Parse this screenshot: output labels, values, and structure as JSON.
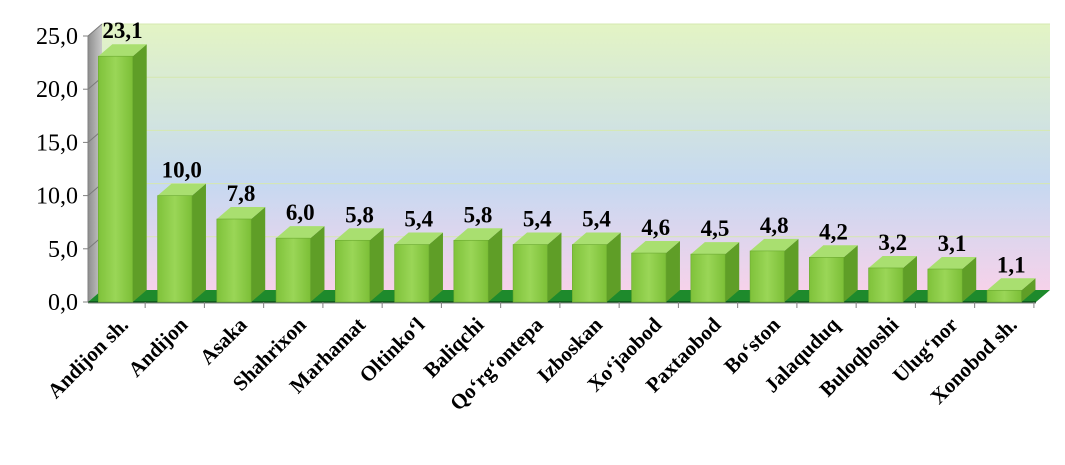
{
  "chart_data": {
    "type": "bar",
    "categories": [
      "Andijon sh.",
      "Andijon",
      "Asaka",
      "Shahrixon",
      "Marhamat",
      "Oltinko‘l",
      "Baliqchi",
      "Qo‘rg‘ontepa",
      "Izboskan",
      "Xo‘jaobod",
      "Paxtaobod",
      "Bo‘ston",
      "Jalaquduq",
      "Buloqboshi",
      "Ulug‘nor",
      "Xonobod sh."
    ],
    "values": [
      23.1,
      10.0,
      7.8,
      6.0,
      5.8,
      5.4,
      5.8,
      5.4,
      5.4,
      4.6,
      4.5,
      4.8,
      4.2,
      3.2,
      3.1,
      1.1
    ],
    "value_labels": [
      "23,1",
      "10,0",
      "7,8",
      "6,0",
      "5,8",
      "5,4",
      "5,8",
      "5,4",
      "5,4",
      "4,6",
      "4,5",
      "4,8",
      "4,2",
      "3,2",
      "3,1",
      "1,1"
    ],
    "yticks": [
      0,
      5,
      10,
      15,
      20,
      25
    ],
    "ytick_labels": [
      "0,0",
      "5,0",
      "10,0",
      "15,0",
      "20,0",
      "25,0"
    ],
    "ylim": [
      0,
      25
    ],
    "title": "",
    "xlabel": "",
    "ylabel": "",
    "grid": true,
    "legend": "none",
    "style": "3d-column",
    "colors": {
      "bar_front": "#8ccf45",
      "bar_side": "#5f9e27",
      "bar_top": "#a9df70",
      "floor": "#1e8a2c",
      "floor_edge": "#0f5e1b",
      "back_wall_top": "#e3f4c4",
      "back_wall_mid": "#c6d9f1",
      "back_wall_bottom": "#f6d2ea",
      "side_wall": "#9b9b9b",
      "gridline": "#d6e8b0"
    }
  }
}
